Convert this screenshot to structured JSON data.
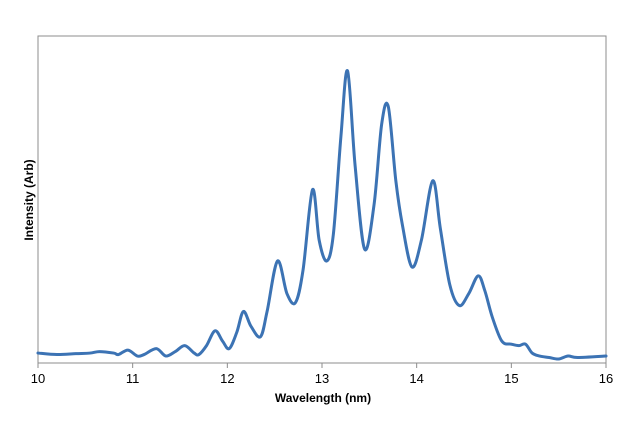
{
  "chart_data": {
    "type": "line",
    "xlabel": "Wavelength (nm)",
    "ylabel": "Intensity (Arb)",
    "xlim": [
      10,
      16
    ],
    "ylim": [
      0,
      1
    ],
    "x_ticks": [
      10,
      11,
      12,
      13,
      14,
      15,
      16
    ],
    "y_ticks_labeled": false,
    "grid": false,
    "legend": "none",
    "series": [
      {
        "color": "#3c73b4",
        "x": [
          10.0,
          10.2,
          10.4,
          10.55,
          10.65,
          10.8,
          10.85,
          10.95,
          11.05,
          11.12,
          11.25,
          11.35,
          11.45,
          11.55,
          11.65,
          11.7,
          11.78,
          11.87,
          11.95,
          12.02,
          12.1,
          12.17,
          12.25,
          12.35,
          12.42,
          12.53,
          12.63,
          12.72,
          12.8,
          12.9,
          12.97,
          13.05,
          13.12,
          13.2,
          13.27,
          13.35,
          13.45,
          13.55,
          13.63,
          13.7,
          13.78,
          13.85,
          13.95,
          14.05,
          14.17,
          14.25,
          14.35,
          14.45,
          14.55,
          14.65,
          14.72,
          14.8,
          14.9,
          15.0,
          15.08,
          15.15,
          15.22,
          15.3,
          15.4,
          15.5,
          15.6,
          15.7,
          16.0
        ],
        "y": [
          0.02,
          0.015,
          0.018,
          0.02,
          0.025,
          0.02,
          0.015,
          0.03,
          0.01,
          0.015,
          0.035,
          0.01,
          0.025,
          0.045,
          0.02,
          0.015,
          0.045,
          0.095,
          0.06,
          0.035,
          0.09,
          0.16,
          0.11,
          0.075,
          0.16,
          0.33,
          0.22,
          0.19,
          0.3,
          0.57,
          0.4,
          0.33,
          0.42,
          0.75,
          0.97,
          0.65,
          0.37,
          0.52,
          0.79,
          0.85,
          0.6,
          0.45,
          0.31,
          0.4,
          0.6,
          0.44,
          0.25,
          0.18,
          0.22,
          0.28,
          0.23,
          0.14,
          0.06,
          0.05,
          0.045,
          0.05,
          0.02,
          0.01,
          0.005,
          0.0,
          0.01,
          0.005,
          0.01
        ]
      }
    ]
  }
}
